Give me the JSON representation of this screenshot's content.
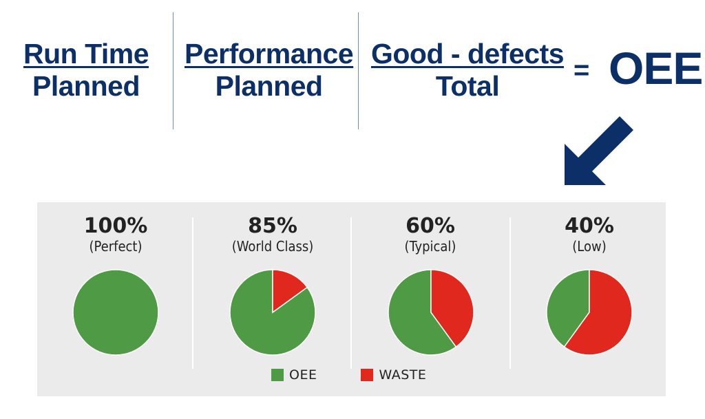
{
  "formula": {
    "terms": [
      {
        "numerator": "Run Time",
        "denominator": "Planned"
      },
      {
        "numerator": "Performance",
        "denominator": "Planned"
      },
      {
        "numerator": "Good - defects",
        "denominator": "Total"
      }
    ],
    "equals": "=",
    "result": "OEE"
  },
  "colors": {
    "navy": "#0b2f66",
    "oee": "#4f9a44",
    "waste": "#e0281e",
    "panel": "#ebebeb"
  },
  "chart_data": {
    "type": "pie",
    "charts": [
      {
        "value_label": "100%",
        "label": "(Perfect)",
        "oee": 100,
        "waste": 0
      },
      {
        "value_label": "85%",
        "label": "(World Class)",
        "oee": 85,
        "waste": 15
      },
      {
        "value_label": "60%",
        "label": "(Typical)",
        "oee": 60,
        "waste": 40
      },
      {
        "value_label": "40%",
        "label": "(Low)",
        "oee": 40,
        "waste": 60
      }
    ],
    "legend": [
      {
        "name": "OEE",
        "color": "#4f9a44"
      },
      {
        "name": "WASTE",
        "color": "#e0281e"
      }
    ]
  }
}
